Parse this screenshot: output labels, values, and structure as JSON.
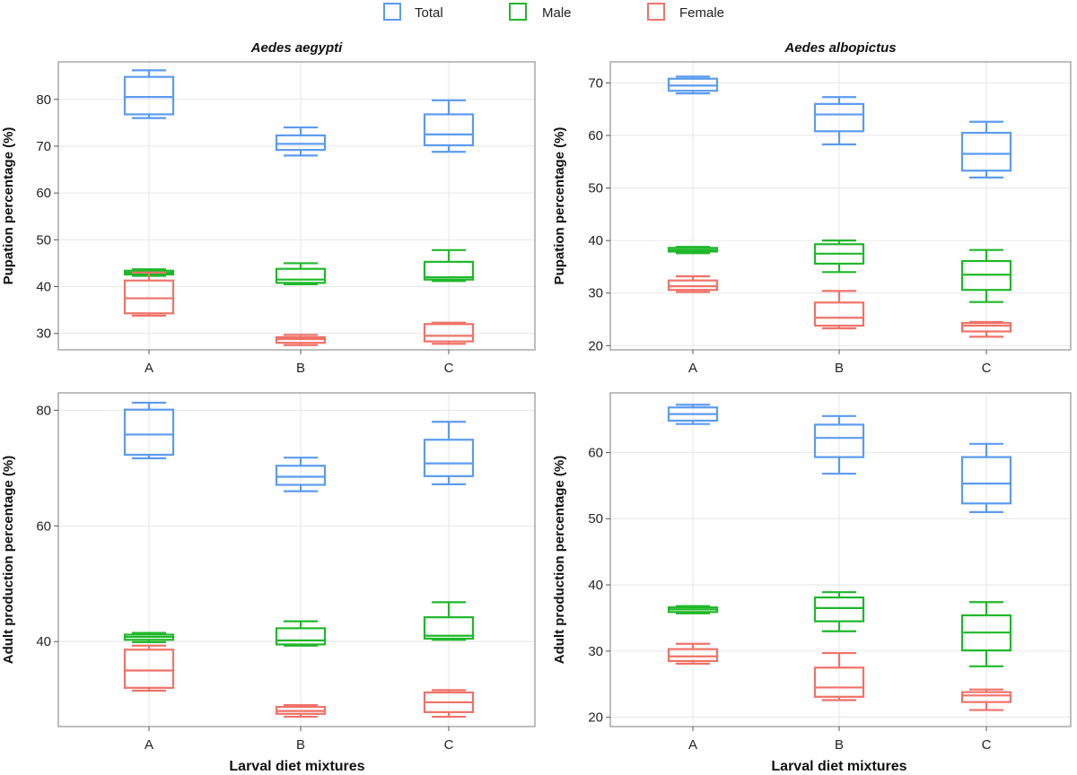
{
  "legend": [
    {
      "name": "Total",
      "color": "#5b9bf0"
    },
    {
      "name": "Male",
      "color": "#1fb82a"
    },
    {
      "name": "Female",
      "color": "#f07268"
    }
  ],
  "xlabel": "Larval diet mixtures",
  "chart_data": [
    {
      "type": "boxplot",
      "title": "Aedes aegypti",
      "ylabel": "Pupation percentage (%)",
      "categories": [
        "A",
        "B",
        "C"
      ],
      "ylim": [
        26.5,
        88
      ],
      "yticks": [
        30,
        40,
        50,
        60,
        70,
        80
      ],
      "series": [
        {
          "name": "Total",
          "boxes": [
            {
              "min": 76.0,
              "q1": 76.8,
              "median": 80.5,
              "q3": 84.8,
              "max": 86.2
            },
            {
              "min": 68.0,
              "q1": 69.2,
              "median": 70.5,
              "q3": 72.3,
              "max": 74.0
            },
            {
              "min": 68.8,
              "q1": 70.2,
              "median": 72.5,
              "q3": 76.8,
              "max": 79.8
            }
          ]
        },
        {
          "name": "Male",
          "boxes": [
            {
              "min": 42.3,
              "q1": 42.6,
              "median": 43.0,
              "q3": 43.4,
              "max": 43.7
            },
            {
              "min": 40.5,
              "q1": 40.8,
              "median": 41.5,
              "q3": 43.8,
              "max": 45.0
            },
            {
              "min": 41.2,
              "q1": 41.5,
              "median": 42.0,
              "q3": 45.3,
              "max": 47.8
            }
          ]
        },
        {
          "name": "Female",
          "boxes": [
            {
              "min": 33.8,
              "q1": 34.3,
              "median": 37.5,
              "q3": 41.3,
              "max": 43.0
            },
            {
              "min": 27.5,
              "q1": 28.0,
              "median": 28.8,
              "q3": 29.2,
              "max": 29.7
            },
            {
              "min": 27.8,
              "q1": 28.3,
              "median": 29.5,
              "q3": 32.0,
              "max": 32.3
            }
          ]
        }
      ]
    },
    {
      "type": "boxplot",
      "title": "Aedes albopictus",
      "ylabel": "Pupation percentage (%)",
      "categories": [
        "A",
        "B",
        "C"
      ],
      "ylim": [
        19.2,
        74
      ],
      "yticks": [
        20,
        30,
        40,
        50,
        60,
        70
      ],
      "series": [
        {
          "name": "Total",
          "boxes": [
            {
              "min": 68.0,
              "q1": 68.5,
              "median": 69.5,
              "q3": 70.8,
              "max": 71.2
            },
            {
              "min": 58.3,
              "q1": 60.8,
              "median": 64.0,
              "q3": 66.0,
              "max": 67.3
            },
            {
              "min": 52.0,
              "q1": 53.3,
              "median": 56.5,
              "q3": 60.5,
              "max": 62.6
            }
          ]
        },
        {
          "name": "Male",
          "boxes": [
            {
              "min": 37.6,
              "q1": 37.9,
              "median": 38.2,
              "q3": 38.6,
              "max": 38.8
            },
            {
              "min": 34.0,
              "q1": 35.6,
              "median": 37.5,
              "q3": 39.3,
              "max": 40.0
            },
            {
              "min": 28.3,
              "q1": 30.6,
              "median": 33.5,
              "q3": 36.1,
              "max": 38.2
            }
          ]
        },
        {
          "name": "Female",
          "boxes": [
            {
              "min": 30.2,
              "q1": 30.6,
              "median": 31.3,
              "q3": 32.4,
              "max": 33.2
            },
            {
              "min": 23.3,
              "q1": 23.8,
              "median": 25.3,
              "q3": 28.2,
              "max": 30.4
            },
            {
              "min": 21.7,
              "q1": 22.7,
              "median": 23.8,
              "q3": 24.3,
              "max": 24.5
            }
          ]
        }
      ]
    },
    {
      "type": "boxplot",
      "title": "",
      "ylabel": "Adult production percentage (%)",
      "categories": [
        "A",
        "B",
        "C"
      ],
      "ylim": [
        25.3,
        83
      ],
      "yticks": [
        40,
        60,
        80
      ],
      "series": [
        {
          "name": "Total",
          "boxes": [
            {
              "min": 71.7,
              "q1": 72.3,
              "median": 75.8,
              "q3": 80.1,
              "max": 81.3
            },
            {
              "min": 66.0,
              "q1": 67.1,
              "median": 68.5,
              "q3": 70.4,
              "max": 71.8
            },
            {
              "min": 67.2,
              "q1": 68.6,
              "median": 70.8,
              "q3": 74.9,
              "max": 78.0
            }
          ]
        },
        {
          "name": "Male",
          "boxes": [
            {
              "min": 39.9,
              "q1": 40.3,
              "median": 40.8,
              "q3": 41.2,
              "max": 41.5
            },
            {
              "min": 39.3,
              "q1": 39.5,
              "median": 40.2,
              "q3": 42.3,
              "max": 43.5
            },
            {
              "min": 40.3,
              "q1": 40.5,
              "median": 41.0,
              "q3": 44.2,
              "max": 46.8
            }
          ]
        },
        {
          "name": "Female",
          "boxes": [
            {
              "min": 31.5,
              "q1": 32.0,
              "median": 35.0,
              "q3": 38.6,
              "max": 39.3
            },
            {
              "min": 27.0,
              "q1": 27.5,
              "median": 28.0,
              "q3": 28.7,
              "max": 29.0
            },
            {
              "min": 27.0,
              "q1": 27.8,
              "median": 29.5,
              "q3": 31.2,
              "max": 31.6
            }
          ]
        }
      ]
    },
    {
      "type": "boxplot",
      "title": "",
      "ylabel": "Adult production percentage (%)",
      "categories": [
        "A",
        "B",
        "C"
      ],
      "ylim": [
        18.6,
        69
      ],
      "yticks": [
        20,
        30,
        40,
        50,
        60
      ],
      "series": [
        {
          "name": "Total",
          "boxes": [
            {
              "min": 64.3,
              "q1": 64.8,
              "median": 65.8,
              "q3": 66.8,
              "max": 67.2
            },
            {
              "min": 56.8,
              "q1": 59.3,
              "median": 62.2,
              "q3": 64.2,
              "max": 65.5
            },
            {
              "min": 51.0,
              "q1": 52.3,
              "median": 55.3,
              "q3": 59.3,
              "max": 61.3
            }
          ]
        },
        {
          "name": "Male",
          "boxes": [
            {
              "min": 35.7,
              "q1": 35.9,
              "median": 36.3,
              "q3": 36.6,
              "max": 36.8
            },
            {
              "min": 33.0,
              "q1": 34.5,
              "median": 36.5,
              "q3": 38.1,
              "max": 38.9
            },
            {
              "min": 27.7,
              "q1": 30.1,
              "median": 32.8,
              "q3": 35.4,
              "max": 37.4
            }
          ]
        },
        {
          "name": "Female",
          "boxes": [
            {
              "min": 28.1,
              "q1": 28.5,
              "median": 29.2,
              "q3": 30.3,
              "max": 31.1
            },
            {
              "min": 22.6,
              "q1": 23.1,
              "median": 24.5,
              "q3": 27.5,
              "max": 29.7
            },
            {
              "min": 21.1,
              "q1": 22.3,
              "median": 23.3,
              "q3": 23.8,
              "max": 24.2
            }
          ]
        }
      ]
    }
  ]
}
